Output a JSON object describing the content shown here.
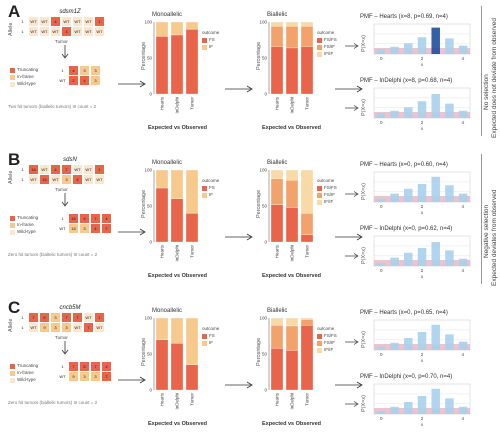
{
  "panels": [
    {
      "letter": "A",
      "gene": "sdsm1Z",
      "example_grid": {
        "rows": [
          [
            "1",
            "WT",
            "WT",
            "4",
            "WT",
            "WT",
            "WT",
            "1"
          ],
          [
            "1",
            "WT",
            "WT",
            "WT",
            "4",
            "WT",
            "WT",
            "WT"
          ]
        ]
      },
      "tumor_label": "Tumor",
      "allele_label": "Allele",
      "summary_grid": [
        [
          "1",
          "4",
          "3",
          "3"
        ],
        [
          "WT",
          "2",
          "4",
          "3"
        ]
      ],
      "legend_example": [
        "Truncating",
        "In-frame",
        "Wild-type"
      ],
      "footnote": "Two hit tumors (biallelic tumors) III count = 2",
      "mono": {
        "title": "Monoallelic",
        "legend_title": "outcome",
        "legend": [
          "FS",
          "IF"
        ],
        "bars": [
          "Hearts",
          "InDelphi",
          "Tumor"
        ],
        "ylabel": "Percentage",
        "yticks": [
          "0",
          "50",
          "100"
        ]
      },
      "bi": {
        "title": "Biallelic",
        "legend_title": "outcome",
        "legend": [
          "FS/FS",
          "FS/IF",
          "IF/IF"
        ],
        "bars": [
          "Hearts",
          "InDelphi",
          "Tumor"
        ],
        "ylabel": "Percentage",
        "yticks": [
          "0",
          "50",
          "100"
        ]
      },
      "expected_observed": "Expected vs Observed",
      "pmf1": {
        "title": "PMF – Hearts (x=8, p=0.69, n=4)",
        "ylabel": "P(X=x)",
        "xlabel": "x",
        "xticks": [
          "0",
          "2",
          "4"
        ],
        "vals": [
          0.08,
          0.12,
          0.18,
          0.28,
          0.44,
          0.26,
          0.14
        ]
      },
      "pmf2": {
        "title": "PMF – InDelphi (x=8, p=0.68, n=4)",
        "ylabel": "P(X=x)",
        "xlabel": "x",
        "xticks": [
          "0",
          "2",
          "4"
        ],
        "vals": [
          0.08,
          0.12,
          0.18,
          0.28,
          0.4,
          0.24,
          0.12
        ]
      },
      "side1": "No selection",
      "side2": "Expected does not deviate from observed"
    },
    {
      "letter": "B",
      "gene": "sdsN",
      "example_grid": {
        "rows": [
          [
            "1",
            "16",
            "WT",
            "4",
            "7",
            "WT",
            "WT",
            "1"
          ],
          [
            "1",
            "WT",
            "16",
            "WT",
            "3",
            "4",
            "WT",
            "WT"
          ]
        ]
      },
      "tumor_label": "Tumor",
      "allele_label": "Allele",
      "summary_grid": [
        [
          "1",
          "16",
          "4",
          "7",
          "4"
        ],
        [
          "WT",
          "18",
          "3",
          "4",
          "7"
        ]
      ],
      "legend_example": [
        "Truncating",
        "In-frame",
        "Wild-type"
      ],
      "footnote": "Zero hit tumors (biallelic tumors) III count = 2",
      "mono": {
        "title": "Monoallelic",
        "legend_title": "outcome",
        "legend": [
          "FS",
          "IF"
        ],
        "bars": [
          "Hearts",
          "InDelphi",
          "Tumor"
        ],
        "ylabel": "Percentage",
        "yticks": [
          "0",
          "50",
          "100"
        ]
      },
      "bi": {
        "title": "Biallelic",
        "legend_title": "outcome",
        "legend": [
          "FS/FS",
          "FS/IF",
          "IF/IF"
        ],
        "bars": [
          "Hearts",
          "InDelphi",
          "Tumor"
        ],
        "ylabel": "Percentage",
        "yticks": [
          "0",
          "50",
          "100"
        ]
      },
      "expected_observed": "Expected vs Observed",
      "pmf1": {
        "title": "PMF – Hearts (x=0, p=0.60, n=4)",
        "ylabel": "P(X=x)",
        "xlabel": "x",
        "xticks": [
          "0",
          "2",
          "4"
        ],
        "vals": [
          0.06,
          0.14,
          0.22,
          0.3,
          0.42,
          0.28,
          0.14
        ]
      },
      "pmf2": {
        "title": "PMF – InDelphi (x=0, p=0.62, n=4)",
        "ylabel": "P(X=x)",
        "xlabel": "x",
        "xticks": [
          "0",
          "2",
          "4"
        ],
        "vals": [
          0.05,
          0.14,
          0.22,
          0.3,
          0.4,
          0.26,
          0.12
        ]
      },
      "side1": "Negative selection",
      "side2": "Expected deviates from observed"
    },
    {
      "letter": "C",
      "gene": "cncb5M",
      "example_grid": {
        "rows": [
          [
            "1",
            "7",
            "8",
            "3",
            "7",
            "7",
            "WT",
            "1"
          ],
          [
            "1",
            "WT",
            "9",
            "3",
            "3",
            "WT",
            "7",
            "WT"
          ]
        ]
      },
      "tumor_label": "Tumor",
      "allele_label": "Allele",
      "summary_grid": [
        [
          "1",
          "7",
          "8",
          "7",
          "4"
        ],
        [
          "WT",
          "9",
          "3",
          "3",
          "7"
        ]
      ],
      "legend_example": [
        "Truncating",
        "In-frame",
        "Wild-type"
      ],
      "footnote": "Zero hit tumors (biallelic tumors) III count = 2",
      "mono": {
        "title": "Monoallelic",
        "legend_title": "outcome",
        "legend": [
          "FS",
          "IF"
        ],
        "bars": [
          "Hearts",
          "InDelphi",
          "Tumor"
        ],
        "ylabel": "Percentage",
        "yticks": [
          "0",
          "50",
          "100"
        ]
      },
      "bi": {
        "title": "Biallelic",
        "legend_title": "outcome",
        "legend": [
          "FS/FS",
          "FS/IF",
          "IF/IF"
        ],
        "bars": [
          "Hearts",
          "InDelphi",
          "Tumor"
        ],
        "ylabel": "Percentage",
        "yticks": [
          "0",
          "50",
          "100"
        ]
      },
      "expected_observed": "Expected vs Observed",
      "pmf1": {
        "title": "PMF – Hearts (x=0, p=0.65, n=4)",
        "ylabel": "P(X=x)",
        "xlabel": "x",
        "xticks": [
          "0",
          "2",
          "4"
        ],
        "vals": [
          0.06,
          0.12,
          0.2,
          0.3,
          0.42,
          0.26,
          0.14
        ]
      },
      "pmf2": {
        "title": "PMF – InDelphi (x=0, p=0.70, n=4)",
        "ylabel": "P(X=x)",
        "xlabel": "x",
        "xticks": [
          "0",
          "2",
          "4"
        ],
        "vals": [
          0.05,
          0.12,
          0.2,
          0.3,
          0.42,
          0.26,
          0.12
        ]
      },
      "side1": "",
      "side2": ""
    }
  ],
  "chart_data": [
    {
      "panel": "A",
      "type": "bar",
      "title": "Monoallelic",
      "categories": [
        "Hearts",
        "InDelphi",
        "Tumor"
      ],
      "series": [
        {
          "name": "FS",
          "values": [
            80,
            82,
            90
          ]
        },
        {
          "name": "IF",
          "values": [
            20,
            18,
            10
          ]
        }
      ],
      "ylim": [
        0,
        100
      ]
    },
    {
      "panel": "A",
      "type": "bar",
      "title": "Biallelic",
      "categories": [
        "Hearts",
        "InDelphi",
        "Tumor"
      ],
      "series": [
        {
          "name": "FS/FS",
          "values": [
            66,
            64,
            66
          ]
        },
        {
          "name": "FS/IF",
          "values": [
            28,
            30,
            28
          ]
        },
        {
          "name": "IF/IF",
          "values": [
            6,
            6,
            6
          ]
        }
      ],
      "ylim": [
        0,
        100
      ]
    },
    {
      "panel": "B",
      "type": "bar",
      "title": "Monoallelic",
      "categories": [
        "Hearts",
        "InDelphi",
        "Tumor"
      ],
      "series": [
        {
          "name": "FS",
          "values": [
            75,
            60,
            40
          ]
        },
        {
          "name": "IF",
          "values": [
            25,
            40,
            60
          ]
        }
      ],
      "ylim": [
        0,
        100
      ]
    },
    {
      "panel": "B",
      "type": "bar",
      "title": "Biallelic",
      "categories": [
        "Hearts",
        "InDelphi",
        "Tumor"
      ],
      "series": [
        {
          "name": "FS/FS",
          "values": [
            52,
            48,
            10
          ]
        },
        {
          "name": "FS/IF",
          "values": [
            36,
            38,
            30
          ]
        },
        {
          "name": "IF/IF",
          "values": [
            12,
            14,
            60
          ]
        }
      ],
      "ylim": [
        0,
        100
      ]
    },
    {
      "panel": "C",
      "type": "bar",
      "title": "Monoallelic",
      "categories": [
        "Hearts",
        "InDelphi",
        "Tumor"
      ],
      "series": [
        {
          "name": "FS",
          "values": [
            70,
            65,
            35
          ]
        },
        {
          "name": "IF",
          "values": [
            30,
            35,
            65
          ]
        }
      ],
      "ylim": [
        0,
        100
      ]
    },
    {
      "panel": "C",
      "type": "bar",
      "title": "Biallelic",
      "categories": [
        "Hearts",
        "InDelphi",
        "Tumor"
      ],
      "series": [
        {
          "name": "FS/FS",
          "values": [
            58,
            55,
            90
          ]
        },
        {
          "name": "FS/IF",
          "values": [
            32,
            34,
            8
          ]
        },
        {
          "name": "IF/IF",
          "values": [
            10,
            11,
            2
          ]
        }
      ],
      "ylim": [
        0,
        100
      ]
    }
  ],
  "colors": {
    "fs": "#e8644a",
    "if": "#f7c98c",
    "ff": "#e8644a",
    "fi": "#f4a26b",
    "ii": "#f9d9a6",
    "truncating": "#e8644a",
    "inframe": "#f7c98c",
    "wildtype": "#fbe6cf",
    "pmf": "#a8d0ec",
    "pmf_obs": "#1f4e9c",
    "band": "#e9a9b6"
  }
}
